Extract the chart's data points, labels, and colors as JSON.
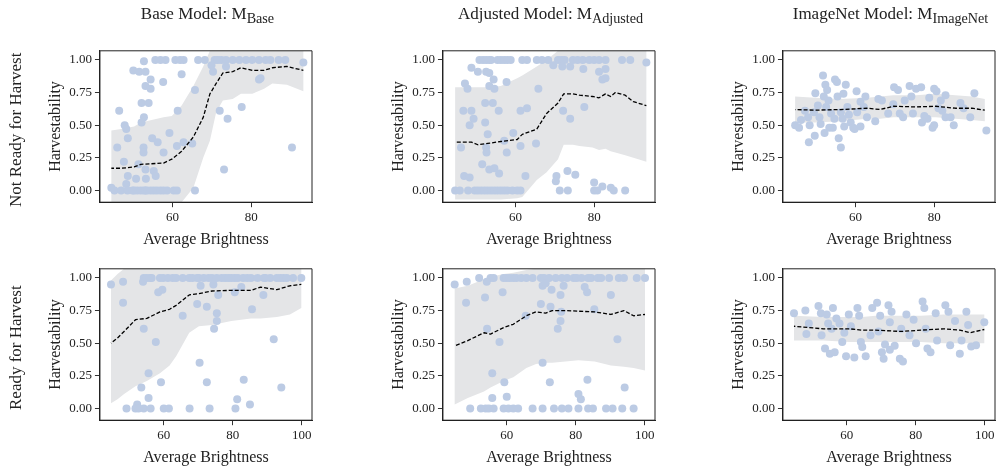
{
  "chart_data": [
    {
      "type": "scatter",
      "title": "Base Model: M$_{Base}$",
      "xlabel": "Average Brightness",
      "ylabel": "Harvestability",
      "annotations": [
        "Not Ready for Harvest"
      ],
      "marker": "circle",
      "xlim": [
        41.5,
        95.5
      ],
      "ylim": [
        -0.09,
        1.07
      ],
      "xticks": [
        60,
        80
      ],
      "yticks": [
        {
          "value": 0,
          "label": "0.00"
        },
        {
          "value": 0.25,
          "label": "0.25"
        },
        {
          "value": 0.5,
          "label": "0.50"
        },
        {
          "value": 0.75,
          "label": "0.75"
        },
        {
          "value": 1,
          "label": "1.00"
        }
      ],
      "series": [
        {
          "color": "#bccbe4",
          "x": [
            55.6,
            56.9,
            58.2,
            60.7,
            61.9,
            62.8,
            66.5,
            68.2,
            70.7,
            71.5,
            72.4,
            73.6,
            75.3,
            77.0,
            78.7,
            80.3,
            82.0,
            83.7,
            84.9,
            87.0,
            88.7,
            93.3,
            52.7,
            50.0,
            51.5,
            53.1,
            54.4,
            57.6,
            62.3,
            53.1,
            54.4,
            65.7,
            69.9,
            70.3,
            73.6,
            82.0,
            82.4,
            52.1,
            53.9,
            46.4,
            77.6,
            61.3,
            72.0,
            52.7,
            52.1,
            47.8,
            48.2,
            48.6,
            74.0,
            59.2,
            54.8,
            56.2,
            62.8,
            65.0,
            45.9,
            52.6,
            61.1,
            90.4,
            52.6,
            57.7,
            47.6,
            51.3,
            53.1,
            55.2,
            73.1,
            48.6,
            50.7,
            53.2,
            55.7,
            48.2,
            44.4,
            45.2,
            46.9,
            48.5,
            49.8,
            50.2,
            51.0,
            51.9,
            52.7,
            53.1,
            53.5,
            54.4,
            55.2,
            56.0,
            56.9,
            57.7,
            58.6,
            60.3,
            61.1,
            65.7
          ],
          "values": [
            1,
            1,
            1,
            1,
            1,
            1,
            1,
            1,
            1,
            1,
            1,
            1,
            1,
            1,
            1,
            1,
            1,
            1,
            1,
            1,
            1,
            0.98,
            0.99,
            0.92,
            0.91,
            0.91,
            0.85,
            0.83,
            0.89,
            0.8,
            0.78,
            0.77,
            0.96,
            0.91,
            0.95,
            0.85,
            0.86,
            0.67,
            0.67,
            0.61,
            0.64,
            0.61,
            0.61,
            0.56,
            0.52,
            0.5,
            0.47,
            0.4,
            0.55,
            0.44,
            0.4,
            0.37,
            0.37,
            0.36,
            0.33,
            0.33,
            0.34,
            0.33,
            0.29,
            0.29,
            0.22,
            0.2,
            0.16,
            0.15,
            0.16,
            0.11,
            0.09,
            0.09,
            0.11,
            0.05,
            0.02,
            0,
            0,
            0,
            0,
            0,
            0,
            0,
            0,
            0,
            0,
            0,
            0,
            0,
            0,
            0,
            0,
            0,
            0,
            0
          ]
        },
        {
          "type": "line",
          "color": "#000000",
          "line_style": "dashed",
          "marker": "none",
          "x": [
            44.4,
            46.9,
            50.2,
            51.9,
            57.7,
            59.8,
            62.3,
            65.3,
            67.8,
            69.5,
            71.1,
            72.8,
            75.3,
            77.4,
            80.3,
            83.3,
            85.4,
            89.1,
            93.3
          ],
          "values": [
            0.17,
            0.17,
            0.18,
            0.2,
            0.21,
            0.24,
            0.3,
            0.41,
            0.56,
            0.74,
            0.82,
            0.9,
            0.91,
            0.94,
            0.92,
            0.92,
            0.94,
            0.95,
            0.92
          ],
          "lower": [
            -0.09,
            -0.09,
            -0.09,
            -0.09,
            -0.09,
            -0.09,
            -0.09,
            0.02,
            0.25,
            0.38,
            0.6,
            0.69,
            0.7,
            0.74,
            0.74,
            0.78,
            0.82,
            0.81,
            0.76
          ],
          "upper": [
            0.46,
            0.47,
            0.49,
            0.52,
            0.56,
            0.57,
            0.65,
            0.8,
            0.95,
            1.07,
            1.07,
            1.07,
            1.07,
            1.07,
            1.07,
            1.07,
            1.07,
            1.07,
            1.07
          ]
        }
      ]
    },
    {
      "type": "scatter",
      "title": "Adjusted Model: M$_{Adjusted}$",
      "xlabel": "Average Brightness",
      "ylabel": "Harvestability",
      "marker": "circle",
      "xlim": [
        41.5,
        95.5
      ],
      "ylim": [
        -0.09,
        1.07
      ],
      "xticks": [
        60,
        80
      ],
      "yticks": [
        {
          "value": 0,
          "label": "0.00"
        },
        {
          "value": 0.25,
          "label": "0.25"
        },
        {
          "value": 0.5,
          "label": "0.50"
        },
        {
          "value": 0.75,
          "label": "0.75"
        },
        {
          "value": 1,
          "label": "1.00"
        }
      ],
      "series": [
        {
          "color": "#bccbe4",
          "x": [
            50.8,
            51.7,
            52.5,
            53.3,
            53.75,
            55.4,
            56.25,
            57.1,
            57.9,
            58.75,
            61.7,
            62.9,
            65.4,
            66.7,
            68.3,
            70.8,
            71.7,
            72.5,
            74.6,
            75.8,
            77.1,
            78.75,
            80,
            81.25,
            82.9,
            87.1,
            89.2,
            93.3,
            48.75,
            50.4,
            52.5,
            53.3,
            54.4,
            47.1,
            47.75,
            53.3,
            54.6,
            57.7,
            65.8,
            69.6,
            71.9,
            73.9,
            77.25,
            81.25,
            82.1,
            82.9,
            82.9,
            77.5,
            46.7,
            48.75,
            52.25,
            54.2,
            55.7,
            61.25,
            62.9,
            72.1,
            49.3,
            48.3,
            52.25,
            52.9,
            59.4,
            73.9,
            57.1,
            46.1,
            52.5,
            61.25,
            65.2,
            52.6,
            57.75,
            51.5,
            53.3,
            54.6,
            55.8,
            62.5,
            46.9,
            48.3,
            70.4,
            73.2,
            75.2,
            70.25,
            80,
            82.1,
            84.25,
            44.6,
            45.8,
            47.9,
            49.6,
            50.4,
            51.25,
            52.1,
            52.9,
            53.75,
            54.6,
            55.4,
            56.25,
            57.1,
            57.9,
            59.2,
            60.4,
            61.25,
            71.25,
            73.3,
            80,
            80.8,
            85,
            87.9
          ],
          "values": [
            1,
            1,
            1,
            1,
            1,
            1,
            1,
            1,
            1,
            1,
            1,
            1,
            1,
            1,
            1,
            1,
            1,
            1,
            1,
            1,
            1,
            1,
            1,
            1,
            1,
            1,
            1,
            0.98,
            0.94,
            0.91,
            0.91,
            0.9,
            0.85,
            0.82,
            0.78,
            0.8,
            0.78,
            0.83,
            0.78,
            0.96,
            0.95,
            0.95,
            0.93,
            0.91,
            0.85,
            0.86,
            0.93,
            0.64,
            0.61,
            0.61,
            0.67,
            0.67,
            0.61,
            0.61,
            0.63,
            0.61,
            0.55,
            0.5,
            0.52,
            0.43,
            0.44,
            0.55,
            0.38,
            0.33,
            0.33,
            0.34,
            0.36,
            0.29,
            0.29,
            0.2,
            0.16,
            0.17,
            0.13,
            0.11,
            0.11,
            0.1,
            0.11,
            0.15,
            0.12,
            0.07,
            0.06,
            0.03,
            0.02,
            0,
            0,
            0,
            0,
            0,
            0,
            0,
            0,
            0,
            0,
            0,
            0,
            0,
            0,
            0,
            0,
            0,
            0,
            0,
            0,
            0,
            0,
            0
          ]
        },
        {
          "type": "line",
          "color": "#000000",
          "line_style": "dashed",
          "marker": "none",
          "x": [
            44.6,
            48.75,
            50.4,
            52.9,
            56.25,
            60.4,
            61.7,
            65.4,
            67.9,
            70.8,
            72.25,
            74.6,
            76.25,
            79.6,
            81.25,
            82.9,
            84.2,
            85.4,
            87.9,
            90,
            93.3
          ],
          "values": [
            0.37,
            0.37,
            0.35,
            0.36,
            0.375,
            0.39,
            0.43,
            0.47,
            0.59,
            0.67,
            0.74,
            0.74,
            0.73,
            0.72,
            0.71,
            0.74,
            0.72,
            0.75,
            0.73,
            0.68,
            0.65
          ],
          "lower": [
            -0.07,
            -0.07,
            -0.07,
            -0.07,
            -0.07,
            -0.06,
            -0.05,
            0.08,
            0.14,
            0.24,
            0.35,
            0.35,
            0.34,
            0.33,
            0.31,
            0.32,
            0.3,
            0.29,
            0.27,
            0.25,
            0.22
          ],
          "upper": [
            0.79,
            0.79,
            0.79,
            0.79,
            0.8,
            0.86,
            0.88,
            0.95,
            1.0,
            1.07,
            1.07,
            1.07,
            1.07,
            1.07,
            1.07,
            1.07,
            1.07,
            1.07,
            1.07,
            1.07,
            1.07
          ]
        }
      ]
    },
    {
      "type": "scatter",
      "title": "ImageNet Model: M$_{ImageNet}$",
      "xlabel": "Average Brightness",
      "ylabel": "Harvestability",
      "marker": "circle",
      "xlim": [
        41.5,
        95.5
      ],
      "ylim": [
        -0.09,
        1.07
      ],
      "xticks": [
        60,
        80
      ],
      "yticks": [
        {
          "value": 0,
          "label": "0.00"
        },
        {
          "value": 0.25,
          "label": "0.25"
        },
        {
          "value": 0.5,
          "label": "0.50"
        },
        {
          "value": 0.75,
          "label": "0.75"
        },
        {
          "value": 1,
          "label": "1.00"
        }
      ],
      "series": [
        {
          "color": "#bccbe4",
          "x": [
            44.6,
            45.6,
            46.1,
            47.1,
            47.9,
            48.3,
            48.1,
            49.6,
            49.4,
            49.75,
            50.4,
            50.8,
            51.1,
            51.7,
            51.9,
            52.1,
            52.3,
            52.5,
            52.75,
            53.1,
            53.3,
            53.75,
            54.2,
            54.6,
            54.75,
            55.25,
            55.4,
            55.7,
            56.25,
            56.25,
            56.7,
            56.9,
            57.1,
            57.5,
            57.9,
            58.3,
            58.75,
            59.4,
            59.75,
            60.25,
            60.4,
            61.25,
            61.25,
            62.1,
            62.5,
            62.9,
            65,
            65.8,
            66.7,
            68.3,
            69.6,
            69.8,
            70.8,
            71.25,
            72.1,
            72.5,
            73.75,
            74.2,
            74.6,
            75.4,
            76.7,
            76.9,
            77.5,
            78.3,
            78.75,
            79.6,
            80,
            80,
            80.6,
            81.1,
            81.7,
            82.1,
            82.9,
            82.9,
            84.2,
            85,
            86.7,
            87.5,
            89.2,
            90.25,
            93.3
          ],
          "values": [
            0.5,
            0.48,
            0.54,
            0.61,
            0.56,
            0.5,
            0.37,
            0.42,
            0.6,
            0.745,
            0.65,
            0.56,
            0.51,
            0.88,
            0.72,
            0.44,
            0.81,
            0.64,
            0.77,
            0.69,
            0.48,
            0.59,
            0.48,
            0.55,
            0.85,
            0.83,
            0.72,
            0.4,
            0.33,
            0.6,
            0.55,
            0.74,
            0.49,
            0.81,
            0.64,
            0.58,
            0.52,
            0.48,
            0.47,
            0.76,
            0.6,
            0.49,
            0.68,
            0.64,
            0.72,
            0.56,
            0.53,
            0.7,
            0.69,
            0.59,
            0.66,
            0.79,
            0.77,
            0.59,
            0.56,
            0.69,
            0.8,
            0.72,
            0.59,
            0.78,
            0.79,
            0.52,
            0.57,
            0.55,
            0.71,
            0.48,
            0.5,
            0.78,
            0.76,
            0.63,
            0.69,
            0.61,
            0.73,
            0.56,
            0.56,
            0.5,
            0.67,
            0.63,
            0.56,
            0.745,
            0.46
          ]
        },
        {
          "type": "line",
          "color": "#000000",
          "line_style": "dashed",
          "marker": "none",
          "x": [
            44.6,
            49.6,
            56.25,
            62.9,
            66.25,
            69.6,
            75.4,
            80.4,
            85.4,
            89.6,
            92.9
          ],
          "values": [
            0.62,
            0.615,
            0.62,
            0.63,
            0.62,
            0.645,
            0.64,
            0.645,
            0.63,
            0.63,
            0.615
          ],
          "lower": [
            0.52,
            0.52,
            0.53,
            0.55,
            0.55,
            0.56,
            0.56,
            0.56,
            0.55,
            0.54,
            0.53
          ],
          "upper": [
            0.72,
            0.71,
            0.7,
            0.71,
            0.72,
            0.73,
            0.73,
            0.74,
            0.73,
            0.72,
            0.7
          ]
        }
      ]
    },
    {
      "type": "scatter",
      "xlabel": "Average Brightness",
      "ylabel": "Harvestability",
      "annotations": [
        "Ready for Harvest"
      ],
      "marker": "circle",
      "xlim": [
        41.5,
        103
      ],
      "ylim": [
        -0.09,
        1.07
      ],
      "xticks": [
        60,
        80,
        100
      ],
      "yticks": [
        {
          "value": 0,
          "label": "0.00"
        },
        {
          "value": 0.25,
          "label": "0.25"
        },
        {
          "value": 0.5,
          "label": "0.50"
        },
        {
          "value": 0.75,
          "label": "0.75"
        },
        {
          "value": 1,
          "label": "1.00"
        }
      ],
      "series": [
        {
          "color": "#bccbe4",
          "x": [
            54.2,
            55.1,
            56.1,
            56.5,
            58.9,
            59.8,
            61.2,
            62.6,
            63.6,
            65.5,
            67.4,
            68.3,
            69.7,
            70.2,
            71.6,
            73.0,
            74.0,
            75.4,
            76.8,
            77.8,
            78.7,
            79.6,
            80.6,
            81.5,
            83.0,
            84.2,
            85.3,
            87.2,
            89.1,
            89.5,
            90.9,
            92.8,
            93.8,
            94.7,
            95.7,
            97.5,
            99.9,
            44.7,
            48.2,
            48.2,
            54.0,
            58.4,
            59.6,
            65.5,
            69.7,
            70.7,
            72.5,
            74.4,
            75.4,
            75.8,
            75.4,
            74.6,
            80.6,
            82.5,
            85.6,
            88.9,
            54.2,
            57.7,
            91.9,
            70.4,
            55.6,
            59.2,
            72.5,
            83.2,
            53.5,
            94.1,
            55.6,
            81.3,
            85.0,
            52.3,
            49.2,
            51.8,
            52.7,
            54.2,
            56.2,
            60,
            61.5,
            67.5,
            73.3,
            80.8
          ],
          "values": [
            1,
            1,
            1,
            1,
            1,
            1,
            1,
            1,
            1,
            1,
            1,
            1,
            1,
            1,
            1,
            1,
            1,
            1,
            1,
            1,
            1,
            1,
            1,
            1,
            1,
            1,
            1,
            1,
            1,
            1,
            1,
            1,
            1,
            1,
            1,
            1,
            1,
            0.95,
            0.97,
            0.81,
            0.97,
            0.89,
            0.91,
            0.71,
            0.8,
            0.94,
            0.78,
            0.95,
            0.73,
            0.87,
            0.67,
            0.61,
            0.89,
            0.93,
            0.76,
            0.87,
            0.61,
            0.51,
            0.53,
            0.35,
            0.27,
            0.2,
            0.2,
            0.22,
            0.16,
            0.16,
            0.08,
            0.07,
            0.03,
            0.03,
            0,
            0,
            0,
            0,
            0,
            0,
            0,
            0,
            0,
            0
          ]
        },
        {
          "type": "line",
          "color": "#000000",
          "line_style": "dashed",
          "marker": "none",
          "x": [
            44.7,
            46.6,
            48.5,
            51.8,
            55.1,
            58.9,
            61.7,
            63.6,
            67.4,
            70.2,
            74.0,
            79.6,
            85.3,
            88.1,
            92.8,
            96.6,
            99.9
          ],
          "values": [
            0.5,
            0.54,
            0.59,
            0.68,
            0.69,
            0.74,
            0.76,
            0.79,
            0.87,
            0.88,
            0.9,
            0.905,
            0.905,
            0.93,
            0.91,
            0.94,
            0.95
          ],
          "lower": [
            0.04,
            0.07,
            0.11,
            0.17,
            0.21,
            0.27,
            0.33,
            0.4,
            0.58,
            0.63,
            0.64,
            0.67,
            0.69,
            0.69,
            0.7,
            0.72,
            0.77
          ],
          "upper": [
            0.98,
            1.03,
            1.07,
            1.07,
            1.07,
            1.07,
            1.07,
            1.07,
            1.07,
            1.07,
            1.07,
            1.07,
            1.07,
            1.07,
            1.07,
            1.07,
            1.07
          ]
        }
      ]
    },
    {
      "type": "scatter",
      "xlabel": "Average Brightness",
      "ylabel": "Harvestability",
      "marker": "circle",
      "xlim": [
        41.5,
        103
      ],
      "ylim": [
        -0.09,
        1.07
      ],
      "xticks": [
        60,
        80,
        100
      ],
      "yticks": [
        {
          "value": 0,
          "label": "0.00"
        },
        {
          "value": 0.25,
          "label": "0.25"
        },
        {
          "value": 0.5,
          "label": "0.50"
        },
        {
          "value": 0.75,
          "label": "0.75"
        },
        {
          "value": 1,
          "label": "1.00"
        }
      ],
      "series": [
        {
          "color": "#bccbe4",
          "x": [
            52.0,
            55.3,
            56.2,
            59.1,
            60,
            60.9,
            61.9,
            62.8,
            64.2,
            65.7,
            67.5,
            69.9,
            70.8,
            72.3,
            74.2,
            76.0,
            77.5,
            79.4,
            80.3,
            81.7,
            83.6,
            84.5,
            86.4,
            87.4,
            89.7,
            92.5,
            94.0,
            97.7,
            100.1,
            44.9,
            48.4,
            48.2,
            54.2,
            53.7,
            58.8,
            70.4,
            71.3,
            73.0,
            75.6,
            76.5,
            82.6,
            83.3,
            90.2,
            69.9,
            72.7,
            85.4,
            65.5,
            75.8,
            75.6,
            74.8,
            54.3,
            57.9,
            92.1,
            70.4,
            55.8,
            59.3,
            72.5,
            83.4,
            94.2,
            80.8,
            55.8,
            60,
            81.5,
            49.4,
            52.5,
            53.9,
            54.8,
            56.2,
            59.1,
            60.5,
            61.9,
            63.3,
            67.5,
            70.4,
            73.7,
            76.0,
            77.9,
            80.8,
            83.6,
            85.0,
            88.8,
            90.7,
            93.5,
            96.8
          ],
          "values": [
            1,
            1,
            1,
            1,
            1,
            1,
            1,
            1,
            1,
            1,
            1,
            1,
            1,
            1,
            1,
            1,
            1,
            1,
            1,
            1,
            1,
            1,
            1,
            1,
            1,
            1,
            1,
            1,
            1,
            0.95,
            0.97,
            0.81,
            0.97,
            0.85,
            0.89,
            0.94,
            0.96,
            0.91,
            0.87,
            0.94,
            0.93,
            0.89,
            0.87,
            0.8,
            0.78,
            0.76,
            0.71,
            0.74,
            0.67,
            0.61,
            0.61,
            0.51,
            0.53,
            0.35,
            0.27,
            0.2,
            0.2,
            0.22,
            0.16,
            0.11,
            0.08,
            0.09,
            0.07,
            0,
            0,
            0,
            0,
            0,
            0,
            0,
            0,
            0,
            0,
            0,
            0,
            0,
            0,
            0,
            0,
            0,
            0,
            0,
            0,
            0
          ]
        },
        {
          "type": "line",
          "color": "#000000",
          "line_style": "dashed",
          "marker": "none",
          "x": [
            44.9,
            48.7,
            53.4,
            55.3,
            59.1,
            61.9,
            65.7,
            68.5,
            71.3,
            73.2,
            77.0,
            80.8,
            85.5,
            90.2,
            94.0,
            96.8,
            100.1
          ],
          "values": [
            0.48,
            0.52,
            0.58,
            0.57,
            0.62,
            0.645,
            0.71,
            0.74,
            0.73,
            0.75,
            0.75,
            0.745,
            0.74,
            0.72,
            0.75,
            0.71,
            0.72
          ],
          "lower": [
            0.03,
            0.08,
            0.13,
            0.16,
            0.21,
            0.24,
            0.31,
            0.34,
            0.35,
            0.35,
            0.36,
            0.37,
            0.36,
            0.33,
            0.32,
            0.31,
            0.29
          ],
          "upper": [
            0.92,
            0.94,
            0.99,
            1.01,
            1.03,
            1.04,
            1.06,
            1.07,
            1.07,
            1.07,
            1.07,
            1.07,
            1.07,
            1.07,
            1.07,
            1.07,
            1.07
          ]
        }
      ]
    },
    {
      "type": "scatter",
      "xlabel": "Average Brightness",
      "ylabel": "Harvestability",
      "marker": "circle",
      "xlim": [
        41.5,
        103
      ],
      "ylim": [
        -0.09,
        1.07
      ],
      "xticks": [
        60,
        80,
        100
      ],
      "yticks": [
        {
          "value": 0,
          "label": "0.00"
        },
        {
          "value": 0.25,
          "label": "0.25"
        },
        {
          "value": 0.5,
          "label": "0.50"
        },
        {
          "value": 0.75,
          "label": "0.75"
        },
        {
          "value": 1,
          "label": "1.00"
        }
      ],
      "series": [
        {
          "color": "#bccbe4",
          "x": [
            44.7,
            48.0,
            48.3,
            49.0,
            51.8,
            52.5,
            52.7,
            53.7,
            54.2,
            54.6,
            55.1,
            55.6,
            56.0,
            56.5,
            57.0,
            57.9,
            58.7,
            59.3,
            59.8,
            60.6,
            61.2,
            62.2,
            63.1,
            63.6,
            64.1,
            64.5,
            65.5,
            66.9,
            67.4,
            68.8,
            69.2,
            69.7,
            70.2,
            70.7,
            71.1,
            72.1,
            72.5,
            73.0,
            72.5,
            73.9,
            75.4,
            76.3,
            75.8,
            77.3,
            78.2,
            79.4,
            80.1,
            82.0,
            82.5,
            82.9,
            83.4,
            84.3,
            85.8,
            86.2,
            88.6,
            89.5,
            90,
            91.4,
            92.8,
            93.3,
            94.7,
            95.2,
            96.1,
            97.5,
            99.9
          ],
          "values": [
            0.73,
            0.75,
            0.57,
            0.65,
            0.785,
            0.73,
            0.56,
            0.46,
            0.72,
            0.65,
            0.42,
            0.61,
            0.77,
            0.43,
            0.69,
            0.65,
            0.51,
            0.58,
            0.4,
            0.72,
            0.63,
            0.39,
            0.77,
            0.71,
            0.51,
            0.47,
            0.4,
            0.56,
            0.77,
            0.81,
            0.59,
            0.71,
            0.43,
            0.38,
            0.49,
            0.79,
            0.66,
            0.74,
            0.45,
            0.48,
            0.38,
            0.36,
            0.61,
            0.72,
            0.56,
            0.68,
            0.5,
            0.82,
            0.77,
            0.61,
            0.46,
            0.43,
            0.73,
            0.52,
            0.79,
            0.74,
            0.485,
            0.67,
            0.42,
            0.52,
            0.74,
            0.64,
            0.475,
            0.485,
            0.66
          ]
        },
        {
          "type": "line",
          "color": "#000000",
          "line_style": "dashed",
          "marker": "none",
          "x": [
            44.7,
            53.2,
            60.8,
            64.5,
            68.3,
            75.8,
            81.5,
            88.1,
            92.8,
            95.7,
            99.9
          ],
          "values": [
            0.63,
            0.61,
            0.61,
            0.6,
            0.6,
            0.59,
            0.6,
            0.61,
            0.6,
            0.58,
            0.605
          ],
          "lower": [
            0.52,
            0.52,
            0.51,
            0.51,
            0.51,
            0.51,
            0.51,
            0.5,
            0.5,
            0.5,
            0.5
          ],
          "upper": [
            0.71,
            0.7,
            0.7,
            0.7,
            0.71,
            0.71,
            0.71,
            0.72,
            0.72,
            0.72,
            0.72
          ]
        }
      ]
    }
  ]
}
